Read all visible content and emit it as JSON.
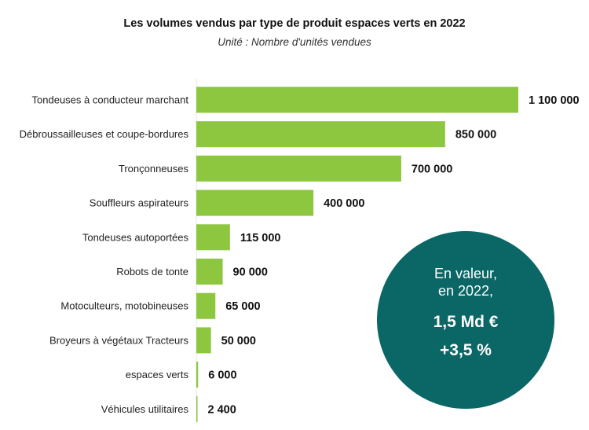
{
  "chart_data": {
    "type": "bar",
    "orientation": "horizontal",
    "title": "Les volumes vendus par type de produit espaces verts en 2022",
    "subtitle": "Unité : Nombre d'unités vendues",
    "categories": [
      "Tondeuses à conducteur marchant",
      "Débroussailleuses et coupe-bordures",
      "Tronçonneuses",
      "Souffleurs aspirateurs",
      "Tondeuses autoportées",
      "Robots de tonte",
      "Motoculteurs, motobineuses",
      "Broyeurs à végétaux Tracteurs",
      "espaces verts",
      "Véhicules utilitaires"
    ],
    "values": [
      1100000,
      850000,
      700000,
      400000,
      115000,
      90000,
      65000,
      50000,
      6000,
      2400
    ],
    "value_labels": [
      "1 100 000",
      "850 000",
      "700 000",
      "400 000",
      "115 000",
      "90 000",
      "65 000",
      "50 000",
      "6 000",
      "2 400"
    ],
    "xlim": [
      0,
      1100000
    ],
    "bar_color": "#8dc63f",
    "grid": false
  },
  "callout": {
    "line1": "En valeur,",
    "line2": "en 2022,",
    "value": "1,5 Md €",
    "change": "+3,5 %",
    "color": "#0b6666"
  }
}
